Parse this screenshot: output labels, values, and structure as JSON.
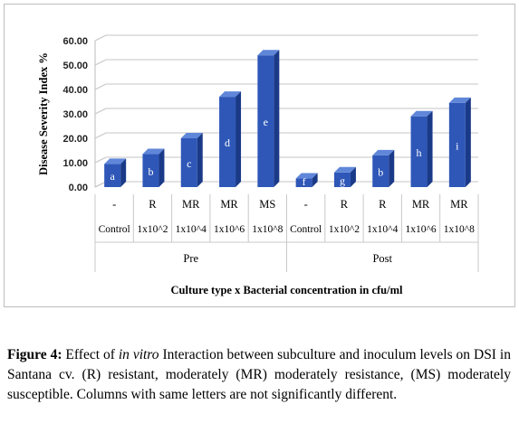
{
  "chart_data": {
    "type": "bar",
    "ylabel": "Disease Severity Index %",
    "xlabel": "Culture type x Bacterial concentration in cfu/ml",
    "ylim": [
      0,
      60
    ],
    "yticks": [
      "0.00",
      "10.00",
      "20.00",
      "30.00",
      "40.00",
      "50.00",
      "60.00"
    ],
    "grid": true,
    "groups": [
      {
        "name": "Pre",
        "bars": [
          {
            "culture": "-",
            "category": "Control",
            "value": 9.5,
            "letter": "a"
          },
          {
            "culture": "R",
            "category": "1x10^2",
            "value": 13.5,
            "letter": "b"
          },
          {
            "culture": "MR",
            "category": "1x10^4",
            "value": 20.0,
            "letter": "c"
          },
          {
            "culture": "MR",
            "category": "1x10^6",
            "value": 37.0,
            "letter": "d"
          },
          {
            "culture": "MS",
            "category": "1x10^8",
            "value": 54.0,
            "letter": "e"
          }
        ]
      },
      {
        "name": "Post",
        "bars": [
          {
            "culture": "-",
            "category": "Control",
            "value": 3.5,
            "letter": "f"
          },
          {
            "culture": "R",
            "category": "1x10^2",
            "value": 6.0,
            "letter": "g"
          },
          {
            "culture": "R",
            "category": "1x10^4",
            "value": 13.0,
            "letter": "b"
          },
          {
            "culture": "MR",
            "category": "1x10^6",
            "value": 29.0,
            "letter": "h"
          },
          {
            "culture": "MR",
            "category": "1x10^8",
            "value": 34.5,
            "letter": "i"
          }
        ]
      }
    ],
    "colors": {
      "bar_front": "#2e57b8",
      "bar_top": "#5f86d8",
      "bar_side": "#1a3a88",
      "letter": "#ffffff"
    }
  },
  "caption": {
    "label": "Figure 4:",
    "text_before_italic": " Effect of ",
    "italic": "in vitro",
    "text_after_italic": " Interaction between subculture and inoculum levels on DSI in Santana cv. (R) resistant, moderately (MR) moderately resistance, (MS) moderately susceptible. Columns with same letters are not significantly different."
  }
}
